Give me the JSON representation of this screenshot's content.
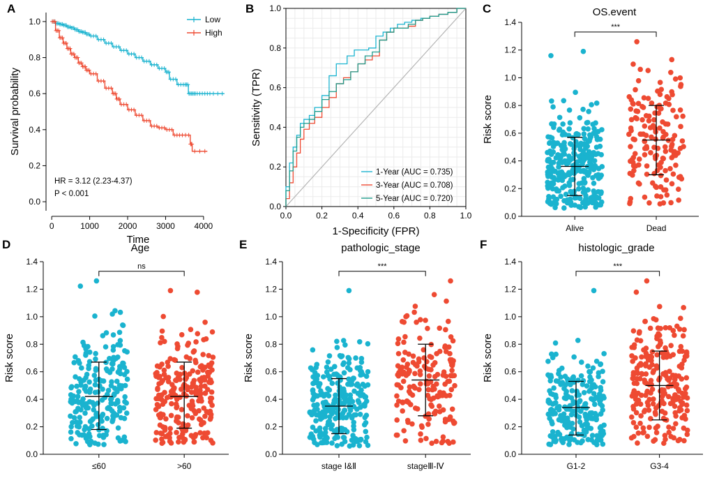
{
  "colors": {
    "low": "#1ab3cf",
    "high": "#ee4a32",
    "diagonal": "#b4b4b4",
    "axis": "#000000"
  },
  "chart_data": [
    {
      "panel": "A",
      "type": "line",
      "subtype": "kaplan-meier",
      "title": "",
      "xlabel": "Time",
      "ylabel": "Survival probability",
      "xlim": [
        -150,
        4700
      ],
      "ylim": [
        -0.05,
        1.05
      ],
      "xticks": [
        0,
        1000,
        2000,
        3000,
        4000
      ],
      "yticks": [
        0.0,
        0.2,
        0.4,
        0.6,
        0.8,
        1.0
      ],
      "legend": {
        "position": "top-right",
        "entries": [
          "Low",
          "High"
        ]
      },
      "annotations": [
        "HR = 3.12 (2.23-4.37)",
        "P < 0.001"
      ],
      "series": [
        {
          "name": "Low",
          "color": "#1ab3cf",
          "x": [
            0,
            100,
            200,
            300,
            400,
            500,
            600,
            700,
            800,
            900,
            1000,
            1200,
            1400,
            1600,
            1800,
            2000,
            2200,
            2400,
            2600,
            2800,
            3000,
            3100,
            3300,
            3500,
            3600,
            3700,
            3800,
            4000,
            4200,
            4550
          ],
          "y": [
            1.0,
            0.99,
            0.985,
            0.98,
            0.97,
            0.965,
            0.955,
            0.945,
            0.94,
            0.93,
            0.92,
            0.9,
            0.88,
            0.86,
            0.84,
            0.82,
            0.8,
            0.78,
            0.76,
            0.74,
            0.72,
            0.68,
            0.65,
            0.65,
            0.6,
            0.6,
            0.6,
            0.6,
            0.6,
            0.6
          ]
        },
        {
          "name": "High",
          "color": "#ee4a32",
          "x": [
            0,
            100,
            200,
            300,
            400,
            500,
            600,
            700,
            800,
            900,
            1000,
            1200,
            1400,
            1600,
            1700,
            1800,
            2000,
            2200,
            2400,
            2600,
            2800,
            3000,
            3200,
            3400,
            3650,
            3700,
            4100
          ],
          "y": [
            1.0,
            0.95,
            0.91,
            0.88,
            0.85,
            0.82,
            0.8,
            0.77,
            0.75,
            0.73,
            0.71,
            0.67,
            0.63,
            0.6,
            0.57,
            0.54,
            0.51,
            0.48,
            0.45,
            0.42,
            0.41,
            0.4,
            0.37,
            0.37,
            0.32,
            0.28,
            0.28
          ]
        }
      ]
    },
    {
      "panel": "B",
      "type": "line",
      "subtype": "roc",
      "title": "",
      "xlabel": "1-Specificity (FPR)",
      "ylabel": "Sensitivity (TPR)",
      "xlim": [
        0,
        1
      ],
      "ylim": [
        0,
        1
      ],
      "xticks": [
        0.0,
        0.2,
        0.4,
        0.6,
        0.8,
        1.0
      ],
      "yticks": [
        0.0,
        0.2,
        0.4,
        0.6,
        0.8,
        1.0
      ],
      "grid": true,
      "legend": {
        "position": "bottom-right"
      },
      "series": [
        {
          "name": "1-Year (AUC = 0.735)",
          "color": "#1ab3cf",
          "x": [
            0,
            0.02,
            0.04,
            0.06,
            0.08,
            0.1,
            0.13,
            0.16,
            0.2,
            0.24,
            0.28,
            0.3,
            0.34,
            0.38,
            0.42,
            0.46,
            0.5,
            0.54,
            0.58,
            0.62,
            0.66,
            0.7,
            0.75,
            0.8,
            0.85,
            0.9,
            0.95,
            1.0
          ],
          "y": [
            0,
            0.1,
            0.22,
            0.3,
            0.36,
            0.42,
            0.44,
            0.46,
            0.5,
            0.56,
            0.66,
            0.72,
            0.72,
            0.76,
            0.79,
            0.79,
            0.8,
            0.86,
            0.88,
            0.9,
            0.92,
            0.93,
            0.94,
            0.95,
            0.96,
            0.97,
            0.98,
            1.0
          ]
        },
        {
          "name": "3-Year (AUC = 0.708)",
          "color": "#ee4a32",
          "x": [
            0,
            0.02,
            0.04,
            0.06,
            0.08,
            0.1,
            0.13,
            0.16,
            0.2,
            0.24,
            0.28,
            0.32,
            0.36,
            0.4,
            0.44,
            0.48,
            0.52,
            0.56,
            0.6,
            0.64,
            0.68,
            0.72,
            0.76,
            0.8,
            0.85,
            0.9,
            0.95,
            1.0
          ],
          "y": [
            0,
            0.04,
            0.12,
            0.2,
            0.27,
            0.34,
            0.39,
            0.42,
            0.45,
            0.5,
            0.55,
            0.62,
            0.65,
            0.68,
            0.72,
            0.74,
            0.76,
            0.84,
            0.88,
            0.9,
            0.9,
            0.91,
            0.94,
            0.95,
            0.96,
            0.97,
            0.98,
            1.0
          ]
        },
        {
          "name": "5-Year (AUC = 0.720)",
          "color": "#1e9c8c",
          "x": [
            0,
            0.02,
            0.04,
            0.06,
            0.08,
            0.1,
            0.13,
            0.16,
            0.2,
            0.24,
            0.28,
            0.32,
            0.36,
            0.4,
            0.44,
            0.48,
            0.52,
            0.56,
            0.6,
            0.64,
            0.68,
            0.72,
            0.76,
            0.8,
            0.85,
            0.9,
            0.95,
            1.0
          ],
          "y": [
            0,
            0.08,
            0.18,
            0.28,
            0.35,
            0.4,
            0.42,
            0.44,
            0.48,
            0.54,
            0.58,
            0.62,
            0.64,
            0.68,
            0.72,
            0.76,
            0.78,
            0.84,
            0.88,
            0.9,
            0.9,
            0.92,
            0.94,
            0.95,
            0.96,
            0.97,
            0.98,
            1.0
          ]
        }
      ]
    },
    {
      "panel": "C",
      "type": "scatter",
      "subtype": "jitter-with-mean-sd",
      "title": "OS.event",
      "xlabel": "",
      "ylabel": "Risk score",
      "ylim": [
        0,
        1.4
      ],
      "yticks": [
        0.0,
        0.2,
        0.4,
        0.6,
        0.8,
        1.0,
        1.2,
        1.4
      ],
      "categories": [
        "Alive",
        "Dead"
      ],
      "significance": "***",
      "groups": [
        {
          "name": "Alive",
          "color": "#1ab3cf",
          "mean": 0.36,
          "sd_low": 0.15,
          "sd_high": 0.57,
          "n": 300,
          "min": 0.06,
          "max": 1.19
        },
        {
          "name": "Dead",
          "color": "#ee4a32",
          "mean": 0.55,
          "sd_low": 0.3,
          "sd_high": 0.8,
          "n": 160,
          "min": 0.09,
          "max": 1.26
        }
      ]
    },
    {
      "panel": "D",
      "type": "scatter",
      "subtype": "jitter-with-mean-sd",
      "title": "Age",
      "xlabel": "",
      "ylabel": "Risk score",
      "ylim": [
        0,
        1.4
      ],
      "yticks": [
        0.0,
        0.2,
        0.4,
        0.6,
        0.8,
        1.0,
        1.2,
        1.4
      ],
      "categories": [
        "≤60",
        ">60"
      ],
      "significance": "ns",
      "groups": [
        {
          "name": "≤60",
          "color": "#1ab3cf",
          "mean": 0.42,
          "sd_low": 0.18,
          "sd_high": 0.67,
          "n": 220,
          "min": 0.07,
          "max": 1.26
        },
        {
          "name": ">60",
          "color": "#ee4a32",
          "mean": 0.42,
          "sd_low": 0.19,
          "sd_high": 0.67,
          "n": 240,
          "min": 0.08,
          "max": 1.19
        }
      ]
    },
    {
      "panel": "E",
      "type": "scatter",
      "subtype": "jitter-with-mean-sd",
      "title": "pathologic_stage",
      "xlabel": "",
      "ylabel": "Risk score",
      "ylim": [
        0,
        1.4
      ],
      "yticks": [
        0.0,
        0.2,
        0.4,
        0.6,
        0.8,
        1.0,
        1.2,
        1.4
      ],
      "categories": [
        "stage Ⅰ&Ⅱ",
        "stageⅢ-Ⅳ"
      ],
      "significance": "***",
      "groups": [
        {
          "name": "stage Ⅰ&Ⅱ",
          "color": "#1ab3cf",
          "mean": 0.35,
          "sd_low": 0.15,
          "sd_high": 0.55,
          "n": 280,
          "min": 0.06,
          "max": 1.19
        },
        {
          "name": "stageⅢ-Ⅳ",
          "color": "#ee4a32",
          "mean": 0.54,
          "sd_low": 0.28,
          "sd_high": 0.8,
          "n": 180,
          "min": 0.08,
          "max": 1.26
        }
      ]
    },
    {
      "panel": "F",
      "type": "scatter",
      "subtype": "jitter-with-mean-sd",
      "title": "histologic_grade",
      "xlabel": "",
      "ylabel": "Risk score",
      "ylim": [
        0,
        1.4
      ],
      "yticks": [
        0.0,
        0.2,
        0.4,
        0.6,
        0.8,
        1.0,
        1.2,
        1.4
      ],
      "categories": [
        "G1-2",
        "G3-4"
      ],
      "significance": "***",
      "groups": [
        {
          "name": "G1-2",
          "color": "#1ab3cf",
          "mean": 0.34,
          "sd_low": 0.14,
          "sd_high": 0.53,
          "n": 240,
          "min": 0.07,
          "max": 1.19
        },
        {
          "name": "G3-4",
          "color": "#ee4a32",
          "mean": 0.5,
          "sd_low": 0.25,
          "sd_high": 0.75,
          "n": 240,
          "min": 0.08,
          "max": 1.26
        }
      ]
    }
  ]
}
